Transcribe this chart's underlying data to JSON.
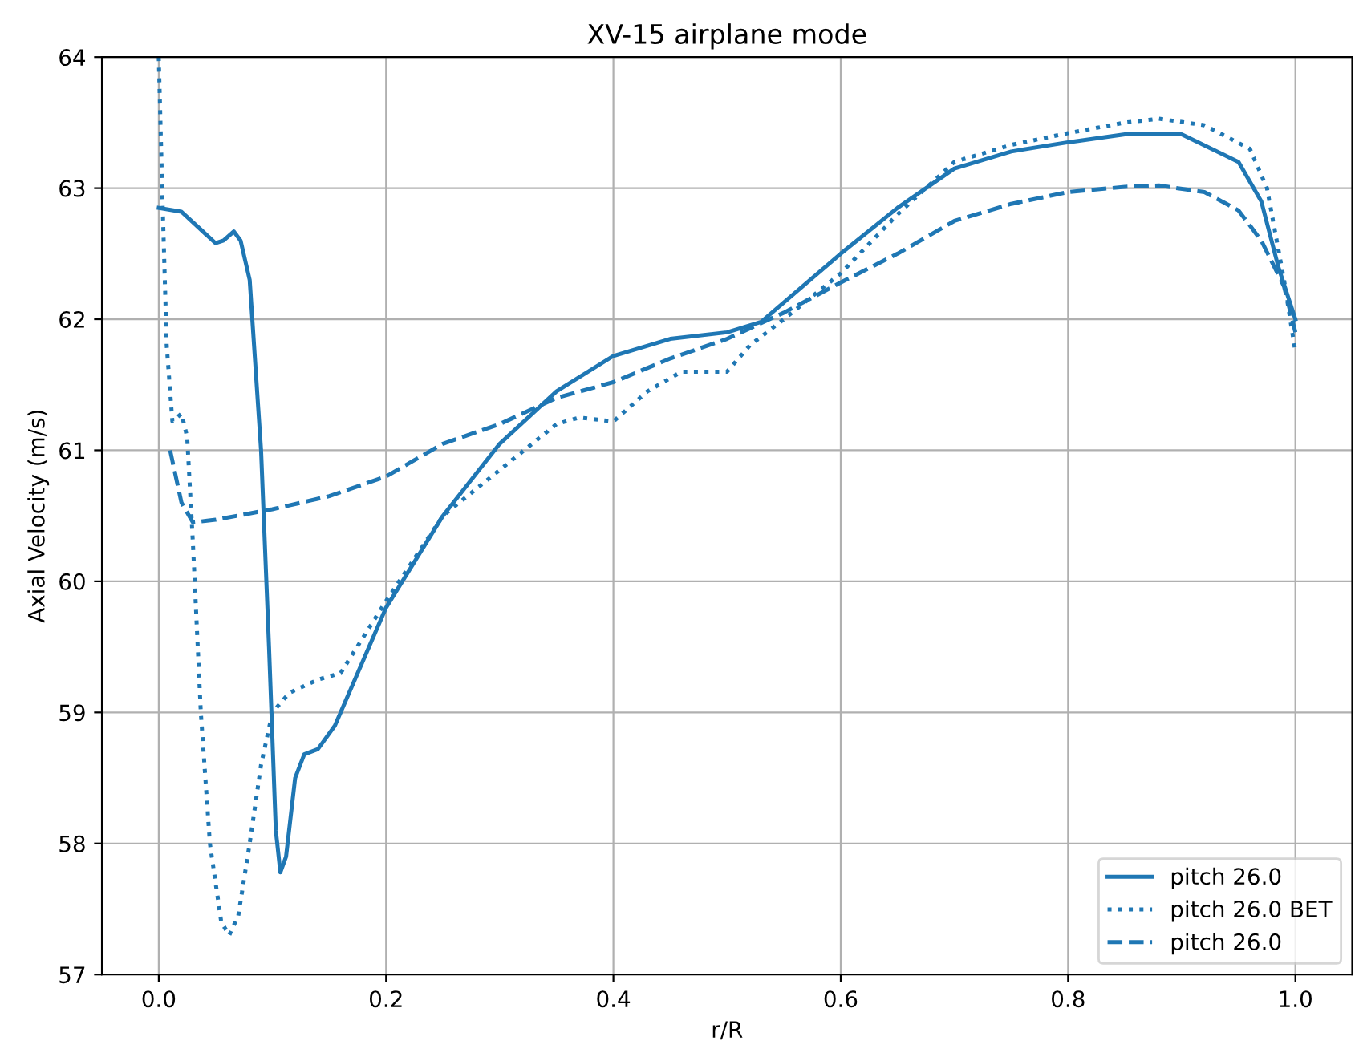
{
  "chart_data": {
    "type": "line",
    "title": "XV-15 airplane mode",
    "xlabel": "r/R",
    "ylabel": "Axial Velocity (m/s)",
    "xlim": [
      -0.05,
      1.05
    ],
    "xticks": [
      {
        "value": 0,
        "label": "0.0"
      },
      0.2,
      0.4,
      0.6,
      0.8,
      {
        "value": 1,
        "label": "1.0"
      }
    ],
    "ylim": [
      57,
      64
    ],
    "yticks": [
      57,
      58,
      59,
      60,
      61,
      62,
      63,
      64
    ],
    "grid": true,
    "legend": "bottom right",
    "series": [
      {
        "name": "pitch 26.0",
        "color": "#1f77b4",
        "line_style": "solid",
        "x": [
          0,
          0.02,
          0.035,
          0.05,
          0.057,
          0.066,
          0.072,
          0.08,
          0.09,
          0.097,
          0.103,
          0.107,
          0.112,
          0.12,
          0.128,
          0.14,
          0.155,
          0.165,
          0.2,
          0.25,
          0.3,
          0.35,
          0.4,
          0.45,
          0.5,
          0.53,
          0.6,
          0.65,
          0.7,
          0.75,
          0.8,
          0.85,
          0.9,
          0.95,
          0.97,
          0.985,
          1.0
        ],
        "values": [
          62.85,
          62.82,
          62.7,
          62.58,
          62.6,
          62.67,
          62.6,
          62.3,
          61.0,
          59.5,
          58.1,
          57.78,
          57.9,
          58.5,
          58.68,
          58.72,
          58.9,
          59.1,
          59.8,
          60.5,
          61.05,
          61.45,
          61.72,
          61.85,
          61.9,
          61.98,
          62.5,
          62.85,
          63.15,
          63.28,
          63.35,
          63.41,
          63.41,
          63.2,
          62.9,
          62.4,
          62.0
        ]
      },
      {
        "name": "pitch 26.0 BET",
        "color": "#1f77b4",
        "line_style": "dotted",
        "x": [
          0,
          0.003,
          0.007,
          0.012,
          0.02,
          0.025,
          0.03,
          0.037,
          0.045,
          0.055,
          0.062,
          0.07,
          0.08,
          0.09,
          0.1,
          0.115,
          0.14,
          0.16,
          0.2,
          0.25,
          0.3,
          0.35,
          0.37,
          0.4,
          0.43,
          0.46,
          0.5,
          0.52,
          0.55,
          0.6,
          0.65,
          0.7,
          0.75,
          0.8,
          0.85,
          0.88,
          0.92,
          0.96,
          0.975,
          0.99,
          1.0
        ],
        "values": [
          64.0,
          63.0,
          61.8,
          61.22,
          61.28,
          61.1,
          60.3,
          59.0,
          58.0,
          57.4,
          57.3,
          57.45,
          58.0,
          58.6,
          59.0,
          59.15,
          59.25,
          59.3,
          59.85,
          60.5,
          60.85,
          61.2,
          61.25,
          61.22,
          61.45,
          61.6,
          61.6,
          61.8,
          62.0,
          62.35,
          62.8,
          63.2,
          63.33,
          63.42,
          63.5,
          63.53,
          63.48,
          63.3,
          63.0,
          62.3,
          61.75
        ]
      },
      {
        "name": "pitch 26.0",
        "color": "#1f77b4",
        "line_style": "dashed",
        "x": [
          0.01,
          0.02,
          0.03,
          0.05,
          0.1,
          0.15,
          0.2,
          0.25,
          0.3,
          0.35,
          0.4,
          0.45,
          0.5,
          0.55,
          0.6,
          0.65,
          0.7,
          0.75,
          0.8,
          0.85,
          0.88,
          0.92,
          0.95,
          0.97,
          0.99,
          1.0
        ],
        "values": [
          61.0,
          60.6,
          60.45,
          60.47,
          60.55,
          60.65,
          60.8,
          61.05,
          61.2,
          61.4,
          61.52,
          61.7,
          61.85,
          62.05,
          62.28,
          62.5,
          62.75,
          62.88,
          62.97,
          63.01,
          63.02,
          62.97,
          62.83,
          62.6,
          62.25,
          61.9
        ]
      }
    ]
  }
}
